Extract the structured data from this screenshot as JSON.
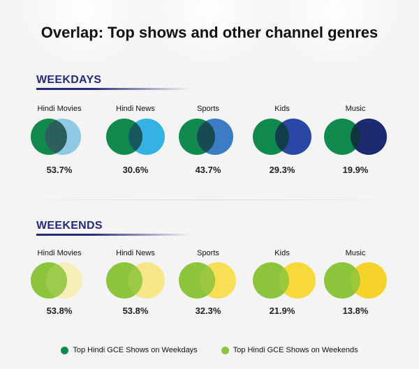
{
  "title": "Overlap: Top shows and other channel genres",
  "sections": [
    {
      "label": "WEEKDAYS",
      "base_color": "#0f8a4c",
      "items": [
        {
          "genre": "Hindi Movies",
          "value": "53.7%",
          "other_color": "#8fc9e6"
        },
        {
          "genre": "Hindi News",
          "value": "30.6%",
          "other_color": "#36b1e4"
        },
        {
          "genre": "Sports",
          "value": "43.7%",
          "other_color": "#3c7cc5"
        },
        {
          "genre": "Kids",
          "value": "29.3%",
          "other_color": "#2b47a5"
        },
        {
          "genre": "Music",
          "value": "19.9%",
          "other_color": "#1d2a6e"
        }
      ]
    },
    {
      "label": "WEEKENDS",
      "base_color": "#8cc43b",
      "items": [
        {
          "genre": "Hindi Movies",
          "value": "53.8%",
          "other_color": "#f6efb9"
        },
        {
          "genre": "Hindi News",
          "value": "53.8%",
          "other_color": "#f7e689"
        },
        {
          "genre": "Sports",
          "value": "32.3%",
          "other_color": "#f8df56"
        },
        {
          "genre": "Kids",
          "value": "21.9%",
          "other_color": "#f8d93a"
        },
        {
          "genre": "Music",
          "value": "13.8%",
          "other_color": "#f6d32b"
        }
      ]
    }
  ],
  "legend": [
    {
      "label": "Top Hindi GCE Shows on Weekdays",
      "color": "#0f8a4c"
    },
    {
      "label": "Top Hindi GCE Shows on Weekends",
      "color": "#8cc43b"
    }
  ]
}
